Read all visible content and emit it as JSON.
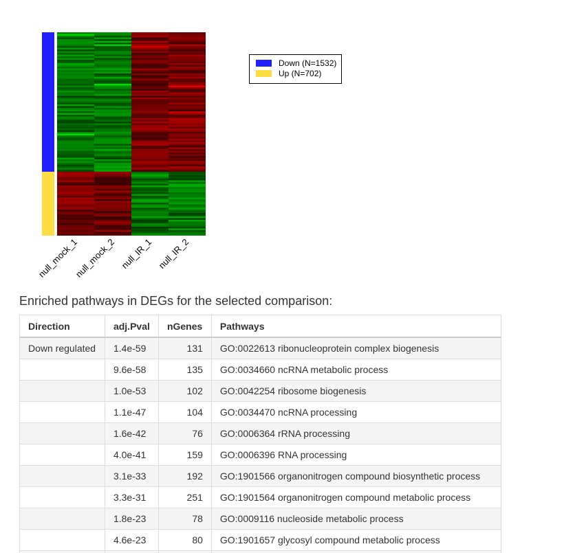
{
  "chart_data": {
    "type": "heatmap",
    "columns": [
      "null_mock_1",
      "null_mock_2",
      "null_IR_1",
      "null_IR_2"
    ],
    "row_groups": [
      {
        "name": "Down",
        "count": 1532,
        "color": "#1f1fff",
        "pattern": [
          "green",
          "green",
          "red",
          "red"
        ]
      },
      {
        "name": "Up",
        "count": 702,
        "color": "#fddc44",
        "pattern": [
          "red",
          "red",
          "green",
          "green"
        ]
      }
    ],
    "legend": {
      "placement": "right",
      "entries": [
        {
          "label": "Down (N=1532)",
          "color": "#1f1fff"
        },
        {
          "label": "Up (N=702)",
          "color": "#fddc44"
        }
      ]
    },
    "colors": {
      "high": "#ff2020",
      "low": "#20ff20",
      "mid": "#000000"
    }
  },
  "section_title": "Enriched pathways in DEGs for the selected comparison:",
  "table": {
    "headers": [
      "Direction",
      "adj.Pval",
      "nGenes",
      "Pathways"
    ],
    "rows": [
      [
        "Down regulated",
        "1.4e-59",
        "131",
        "GO:0022613 ribonucleoprotein complex biogenesis"
      ],
      [
        "",
        "9.6e-58",
        "135",
        "GO:0034660 ncRNA metabolic process"
      ],
      [
        "",
        "1.0e-53",
        "102",
        "GO:0042254 ribosome biogenesis"
      ],
      [
        "",
        "1.1e-47",
        "104",
        "GO:0034470 ncRNA processing"
      ],
      [
        "",
        "1.6e-42",
        "76",
        "GO:0006364 rRNA processing"
      ],
      [
        "",
        "4.0e-41",
        "159",
        "GO:0006396 RNA processing"
      ],
      [
        "",
        "3.1e-33",
        "192",
        "GO:1901566 organonitrogen compound biosynthetic process"
      ],
      [
        "",
        "3.3e-31",
        "251",
        "GO:1901564 organonitrogen compound metabolic process"
      ],
      [
        "",
        "1.8e-23",
        "78",
        "GO:0009116 nucleoside metabolic process"
      ],
      [
        "",
        "4.6e-23",
        "80",
        "GO:1901657 glycosyl compound metabolic process"
      ],
      [
        "",
        "",
        "",
        ""
      ]
    ]
  }
}
